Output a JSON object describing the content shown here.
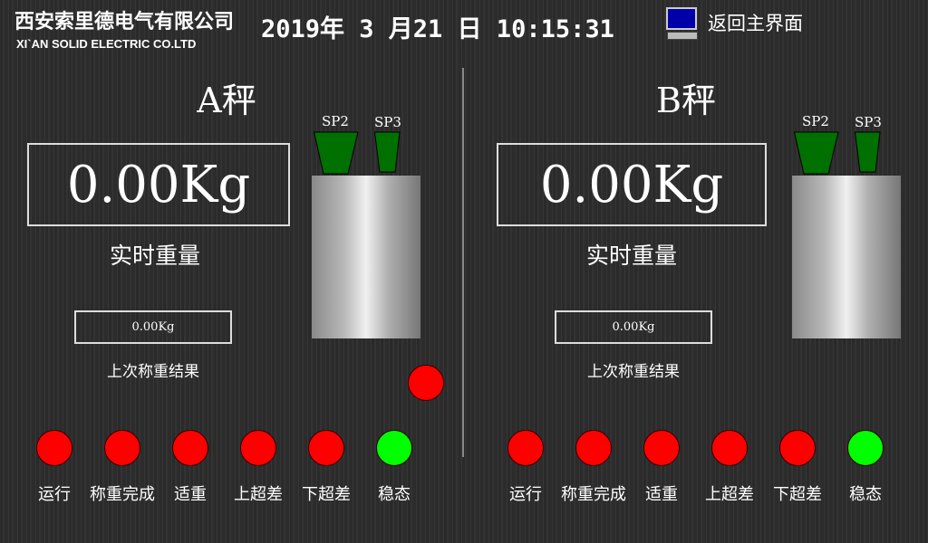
{
  "header": {
    "company": "西安索里德电气有限公司",
    "company_en": "XI`AN SOLID ELECTRIC CO.LTD",
    "datetime": "2019年 3 月21 日 10:15:31",
    "home_label": "返回主界面",
    "home_icon": "monitor-icon"
  },
  "scales": [
    {
      "title": "A秤",
      "weight": "0.00Kg",
      "weight_label": "实时重量",
      "last": "0.00Kg",
      "last_label": "上次称重结果",
      "sp2": "SP2",
      "sp3": "SP3",
      "alarm": "red",
      "lamps": [
        {
          "label": "运行",
          "color": "#ff0000"
        },
        {
          "label": "称重完成",
          "color": "#ff0000"
        },
        {
          "label": "适重",
          "color": "#ff0000"
        },
        {
          "label": "上超差",
          "color": "#ff0000"
        },
        {
          "label": "下超差",
          "color": "#ff0000"
        },
        {
          "label": "稳态",
          "color": "#00ff00"
        }
      ]
    },
    {
      "title": "B秤",
      "weight": "0.00Kg",
      "weight_label": "实时重量",
      "last": "0.00Kg",
      "last_label": "上次称重结果",
      "sp2": "SP2",
      "sp3": "SP3",
      "lamps": [
        {
          "label": "运行",
          "color": "#ff0000"
        },
        {
          "label": "称重完成",
          "color": "#ff0000"
        },
        {
          "label": "适重",
          "color": "#ff0000"
        },
        {
          "label": "上超差",
          "color": "#ff0000"
        },
        {
          "label": "下超差",
          "color": "#ff0000"
        },
        {
          "label": "稳态",
          "color": "#00ff00"
        }
      ]
    }
  ]
}
